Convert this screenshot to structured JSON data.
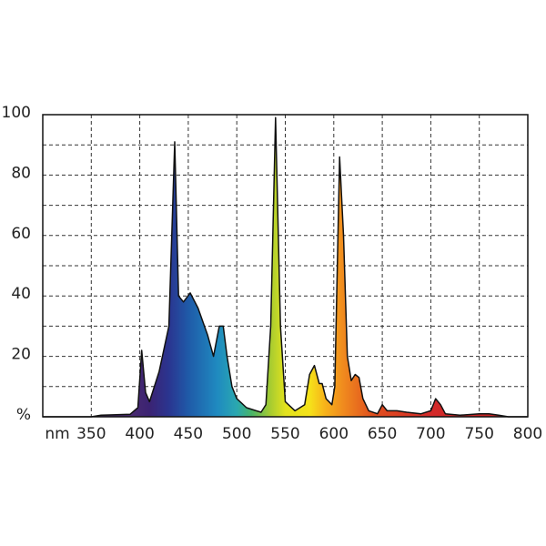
{
  "chart_data": {
    "type": "area",
    "x_label": "nm",
    "x": [
      300,
      350,
      360,
      390,
      398,
      402,
      406,
      410,
      420,
      430,
      436,
      440,
      445,
      452,
      460,
      470,
      476,
      482,
      486,
      490,
      495,
      500,
      510,
      520,
      525,
      530,
      535,
      540,
      545,
      550,
      560,
      570,
      575,
      580,
      585,
      588,
      592,
      598,
      601,
      606,
      610,
      614,
      618,
      622,
      626,
      630,
      636,
      645,
      650,
      655,
      665,
      675,
      690,
      700,
      705,
      710,
      715,
      730,
      750,
      760,
      770,
      780,
      800
    ],
    "values": [
      0,
      0,
      0.5,
      0.8,
      3,
      22,
      8,
      5,
      15,
      30,
      91,
      40,
      38,
      41,
      36,
      27,
      20,
      30,
      30,
      20,
      10,
      6,
      3,
      2,
      1.5,
      4,
      30,
      99,
      30,
      5,
      2,
      4,
      14,
      17,
      11,
      11,
      6,
      4,
      10,
      86,
      60,
      20,
      12,
      14,
      13,
      6,
      2,
      1,
      4,
      2,
      2,
      1.5,
      1,
      2,
      6,
      4,
      1,
      0.5,
      1,
      1,
      0.5,
      0,
      0
    ],
    "xlim": [
      300,
      800
    ],
    "xticks": [
      350,
      400,
      450,
      500,
      550,
      600,
      650,
      700,
      750,
      800
    ],
    "ylim": [
      0,
      100
    ],
    "yticks": [
      {
        "value": 0,
        "label": "%"
      },
      20,
      40,
      60,
      80,
      100
    ],
    "minor_yticks": [
      10,
      30,
      50,
      70,
      90
    ],
    "grid": true
  }
}
